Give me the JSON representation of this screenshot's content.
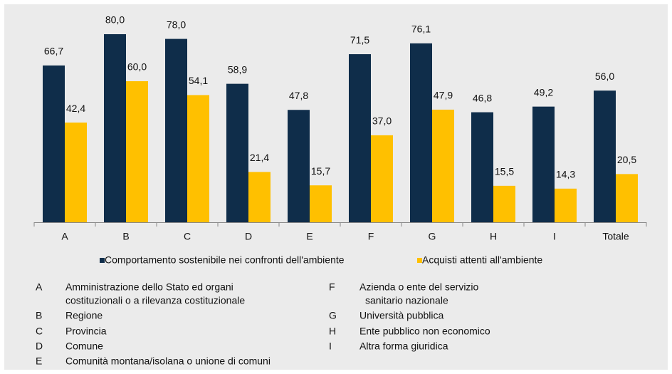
{
  "chart_data": {
    "type": "bar",
    "categories": [
      "A",
      "B",
      "C",
      "D",
      "E",
      "F",
      "G",
      "H",
      "I",
      "Totale"
    ],
    "series": [
      {
        "name": "Comportamento sostenibile nei confronti dell'ambiente",
        "color": "#0f2d4a",
        "values": [
          66.7,
          80.0,
          78.0,
          58.9,
          47.8,
          71.5,
          76.1,
          46.8,
          49.2,
          56.0
        ],
        "value_labels": [
          "66,7",
          "80,0",
          "78,0",
          "58,9",
          "47,8",
          "71,5",
          "76,1",
          "46,8",
          "49,2",
          "56,0"
        ]
      },
      {
        "name": "Acquisti attenti all'ambiente",
        "color": "#ffc000",
        "values": [
          42.4,
          60.0,
          54.1,
          21.4,
          15.7,
          37.0,
          47.9,
          15.5,
          14.3,
          20.5
        ],
        "value_labels": [
          "42,4",
          "60,0",
          "54,1",
          "21,4",
          "15,7",
          "37,0",
          "47,9",
          "15,5",
          "14,3",
          "20,5"
        ]
      }
    ],
    "ylim": [
      0,
      80
    ]
  },
  "key": [
    {
      "letter": "A",
      "lines": [
        "Amministrazione dello Stato ed organi",
        "costituzionali o a rilevanza costituzionale"
      ]
    },
    {
      "letter": "B",
      "lines": [
        "Regione"
      ]
    },
    {
      "letter": "C",
      "lines": [
        "Provincia"
      ]
    },
    {
      "letter": "D",
      "lines": [
        "Comune"
      ]
    },
    {
      "letter": "E",
      "lines": [
        "Comunità montana/isolana o unione di comuni"
      ]
    },
    {
      "letter": "F",
      "lines": [
        "Azienda o ente del servizio",
        "sanitario nazionale"
      ]
    },
    {
      "letter": "G",
      "lines": [
        "Università pubblica"
      ]
    },
    {
      "letter": "H",
      "lines": [
        "Ente pubblico non economico"
      ]
    },
    {
      "letter": "I",
      "lines": [
        "Altra forma giuridica"
      ]
    }
  ]
}
